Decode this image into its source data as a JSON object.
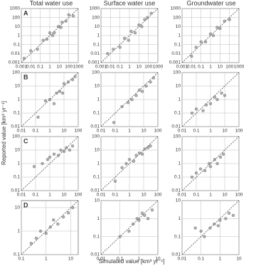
{
  "figure": {
    "column_titles": [
      "Total water use",
      "Surface water use",
      "Groundwater use"
    ],
    "ylabel": "Reported value [km³ yr⁻¹]",
    "xlabel": "Simulated value [km³ yr⁻¹]"
  },
  "chart_data": [
    {
      "type": "scatter",
      "label": "A",
      "log_scale": true,
      "grid": true,
      "diagonal": true,
      "color": "#8a8a8a",
      "x": [
        0.002,
        0.01,
        0.05,
        0.2,
        0.5,
        1,
        2,
        3,
        8,
        15,
        20,
        50,
        100,
        300
      ],
      "values": [
        0.003,
        0.02,
        0.03,
        0.3,
        0.4,
        2,
        1,
        2,
        10,
        8,
        30,
        40,
        200,
        150
      ],
      "xlim": [
        0.001,
        1000
      ],
      "ylim": [
        0.001,
        1000
      ],
      "xticks": [
        0.001,
        0.01,
        0.1,
        1,
        10,
        100,
        1000
      ],
      "yticks": [
        0.001,
        0.01,
        0.1,
        1,
        10,
        100,
        1000
      ]
    },
    {
      "type": "scatter",
      "log_scale": true,
      "grid": true,
      "diagonal": true,
      "color": "#8a8a8a",
      "x": [
        0.005,
        0.02,
        0.1,
        0.3,
        0.8,
        1.5,
        4,
        10,
        20,
        40,
        80,
        200
      ],
      "values": [
        0.01,
        0.03,
        0.05,
        0.5,
        0.3,
        3,
        2,
        15,
        10,
        60,
        100,
        300
      ],
      "xlim": [
        0.001,
        1000
      ],
      "ylim": [
        0.001,
        1000
      ],
      "xticks": [
        0.001,
        0.01,
        0.1,
        1,
        10,
        100,
        1000
      ],
      "yticks": [
        0.001,
        0.01,
        0.1,
        1,
        10,
        100,
        1000
      ]
    },
    {
      "type": "scatter",
      "log_scale": true,
      "grid": true,
      "diagonal": true,
      "color": "#8a8a8a",
      "x": [
        0.01,
        0.03,
        0.1,
        0.3,
        1,
        2,
        5,
        10,
        30,
        100
      ],
      "values": [
        0.005,
        0.05,
        0.2,
        0.2,
        1.5,
        1,
        8,
        6,
        40,
        60
      ],
      "xlim": [
        0.001,
        1000
      ],
      "ylim": [
        0.001,
        1000
      ],
      "xticks": [
        0.001,
        0.01,
        0.1,
        1,
        10,
        100,
        1000
      ],
      "yticks": [
        0.001,
        0.01,
        0.1,
        1,
        10,
        100,
        1000
      ]
    },
    {
      "type": "scatter",
      "label": "B",
      "log_scale": true,
      "grid": true,
      "diagonal": true,
      "color": "#8a8a8a",
      "x": [
        0.15,
        0.5,
        1,
        2,
        3,
        5,
        8,
        10,
        20,
        40,
        60
      ],
      "values": [
        0.05,
        0.8,
        1,
        0.5,
        3,
        4,
        3,
        15,
        20,
        30,
        50
      ],
      "xlim": [
        0.01,
        100
      ],
      "ylim": [
        0.01,
        100
      ],
      "xticks": [
        0.01,
        0.1,
        1,
        10,
        100
      ],
      "yticks": [
        0.01,
        0.1,
        1,
        10,
        100
      ]
    },
    {
      "type": "scatter",
      "log_scale": true,
      "grid": true,
      "diagonal": true,
      "color": "#8a8a8a",
      "x": [
        0.08,
        0.3,
        0.8,
        1.5,
        3,
        5,
        8,
        15,
        30,
        50
      ],
      "values": [
        0.02,
        0.3,
        0.6,
        1,
        2,
        5,
        4,
        10,
        20,
        40
      ],
      "xlim": [
        0.01,
        100
      ],
      "ylim": [
        0.01,
        100
      ],
      "xticks": [
        0.01,
        0.1,
        1,
        10,
        100
      ],
      "yticks": [
        0.01,
        0.1,
        1,
        10,
        100
      ]
    },
    {
      "type": "scatter",
      "log_scale": true,
      "grid": true,
      "diagonal": true,
      "color": "#8a8a8a",
      "x": [
        0.05,
        0.1,
        0.3,
        0.5,
        1,
        2,
        3,
        6,
        10
      ],
      "values": [
        0.1,
        0.2,
        0.15,
        0.4,
        0.5,
        1.5,
        1,
        3,
        2
      ],
      "xlim": [
        0.01,
        100
      ],
      "ylim": [
        0.01,
        100
      ],
      "xticks": [
        0.01,
        0.1,
        1,
        10,
        100
      ],
      "yticks": [
        0.01,
        0.1,
        1,
        10,
        100
      ]
    },
    {
      "type": "scatter",
      "label": "C",
      "log_scale": true,
      "grid": true,
      "diagonal": true,
      "color": "#8a8a8a",
      "x": [
        0.08,
        0.3,
        0.7,
        1,
        2,
        4,
        6,
        10,
        15,
        25,
        40
      ],
      "values": [
        0.6,
        1,
        2,
        3,
        5,
        4,
        10,
        8,
        15,
        10,
        20
      ],
      "xlim": [
        0.01,
        100
      ],
      "ylim": [
        0.01,
        100
      ],
      "xticks": [
        0.01,
        0.1,
        1,
        10,
        100
      ],
      "yticks": [
        0.01,
        0.1,
        1,
        10,
        100
      ]
    },
    {
      "type": "scatter",
      "log_scale": true,
      "grid": true,
      "diagonal": true,
      "color": "#8a8a8a",
      "x": [
        0.1,
        0.3,
        0.6,
        1,
        2,
        3,
        5,
        8,
        12,
        20,
        30
      ],
      "values": [
        0.05,
        0.5,
        1,
        2,
        1.5,
        4,
        6,
        5,
        12,
        15,
        20
      ],
      "xlim": [
        0.01,
        100
      ],
      "ylim": [
        0.01,
        100
      ],
      "xticks": [
        0.01,
        0.1,
        1,
        10,
        100
      ],
      "yticks": [
        0.01,
        0.1,
        1,
        10,
        100
      ]
    },
    {
      "type": "scatter",
      "log_scale": true,
      "grid": true,
      "diagonal": true,
      "color": "#8a8a8a",
      "x": [
        0.05,
        0.1,
        0.2,
        0.4,
        0.8,
        1,
        2,
        3,
        5,
        8
      ],
      "values": [
        0.1,
        0.2,
        0.4,
        0.3,
        1,
        0.6,
        2,
        1,
        3,
        5
      ],
      "xlim": [
        0.01,
        100
      ],
      "ylim": [
        0.01,
        100
      ],
      "xticks": [
        0.01,
        0.1,
        1,
        10,
        100
      ],
      "yticks": [
        0.01,
        0.1,
        1,
        10,
        100
      ]
    },
    {
      "type": "scatter",
      "label": "D",
      "log_scale": true,
      "grid": true,
      "diagonal": true,
      "color": "#8a8a8a",
      "x": [
        0.25,
        0.4,
        0.6,
        1,
        1.5,
        2,
        3,
        5,
        8,
        12
      ],
      "values": [
        0.3,
        0.5,
        1,
        0.8,
        1.5,
        3,
        2,
        4,
        6,
        10
      ],
      "xlim": [
        0.1,
        20
      ],
      "ylim": [
        0.1,
        20
      ],
      "xticks": [
        0.1,
        1,
        10
      ],
      "yticks": [
        0.1,
        1,
        10
      ]
    },
    {
      "type": "scatter",
      "log_scale": true,
      "grid": true,
      "diagonal": true,
      "color": "#8a8a8a",
      "x": [
        0.1,
        0.3,
        0.5,
        0.8,
        1,
        1.5,
        2,
        3,
        5
      ],
      "values": [
        0.1,
        0.2,
        0.5,
        1,
        0.8,
        2,
        1.5,
        1,
        3
      ],
      "xlim": [
        0.01,
        10
      ],
      "ylim": [
        0.01,
        10
      ],
      "xticks": [
        0.01,
        0.1,
        1,
        10
      ],
      "yticks": [
        0.01,
        0.1,
        1,
        10
      ]
    },
    {
      "type": "scatter",
      "log_scale": true,
      "grid": true,
      "diagonal": true,
      "color": "#8a8a8a",
      "x": [
        0.05,
        0.1,
        0.15,
        0.3,
        0.5,
        0.8,
        1,
        2,
        3,
        5
      ],
      "values": [
        0.3,
        0.2,
        0.1,
        0.3,
        0.5,
        0.4,
        0.8,
        1,
        2,
        1.5
      ],
      "xlim": [
        0.01,
        10
      ],
      "ylim": [
        0.01,
        10
      ],
      "xticks": [
        0.01,
        0.1,
        1,
        10
      ],
      "yticks": [
        0.01,
        0.1,
        1,
        10
      ]
    }
  ]
}
